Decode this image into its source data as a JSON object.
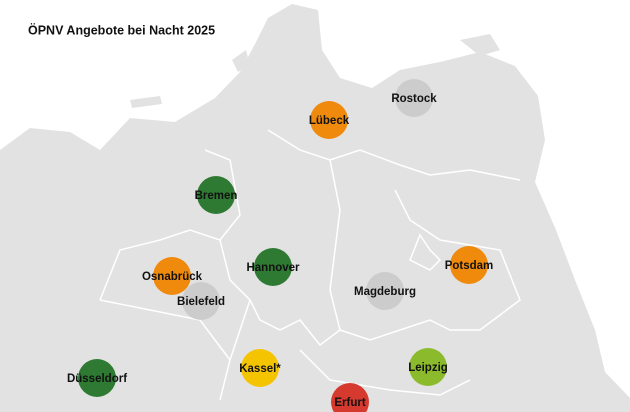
{
  "title": "ÖPNV Angebote bei Nacht 2025",
  "cities": [
    {
      "label": "Lübeck",
      "color": "#ef8a0c"
    },
    {
      "label": "Rostock",
      "color": "#cccccc"
    },
    {
      "label": "Bremen",
      "color": "#2e7a32"
    },
    {
      "label": "Osnabrück",
      "color": "#ef8a0c"
    },
    {
      "label": "Bielefeld",
      "color": "#cccccc"
    },
    {
      "label": "Hannover",
      "color": "#2e7a32"
    },
    {
      "label": "Magdeburg",
      "color": "#cccccc"
    },
    {
      "label": "Potsdam",
      "color": "#ef8a0c"
    },
    {
      "label": "Düsseldorf",
      "color": "#2e7a32"
    },
    {
      "label": "Kassel*",
      "color": "#f5c400"
    },
    {
      "label": "Leipzig",
      "color": "#8bbb2c"
    },
    {
      "label": "Erfurt",
      "color": "#d63a2f"
    }
  ]
}
